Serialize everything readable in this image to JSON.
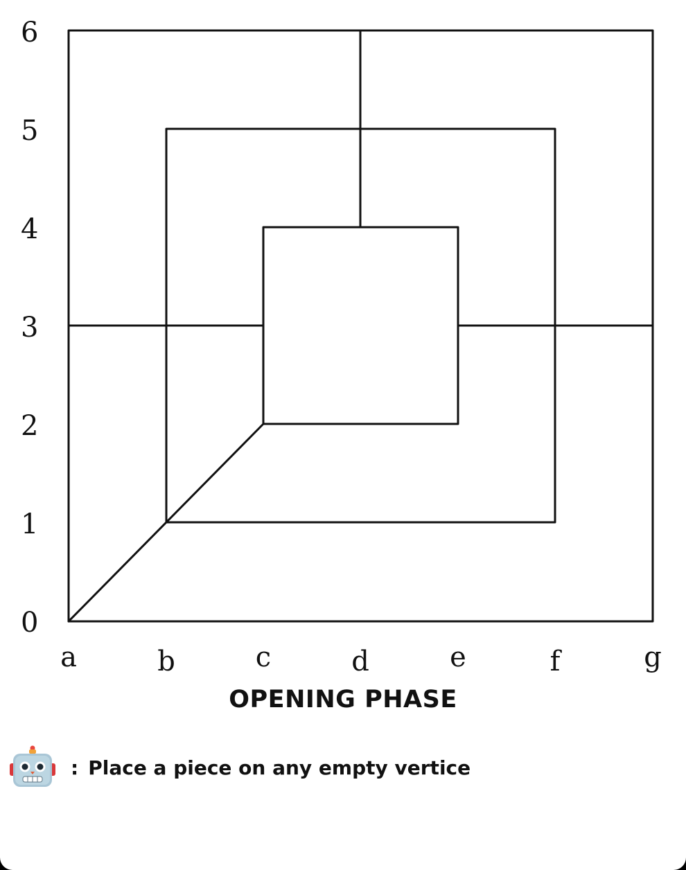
{
  "board": {
    "files": [
      "a",
      "b",
      "c",
      "d",
      "e",
      "f",
      "g"
    ],
    "ranks": [
      "0",
      "1",
      "2",
      "3",
      "4",
      "5",
      "6"
    ],
    "line_color": "#111111",
    "background": "#ffffff"
  },
  "phase": {
    "label": "OPENING PHASE"
  },
  "status": {
    "player_icon": "robot-icon",
    "separator": ":",
    "message": "Place a piece on any empty vertice"
  }
}
